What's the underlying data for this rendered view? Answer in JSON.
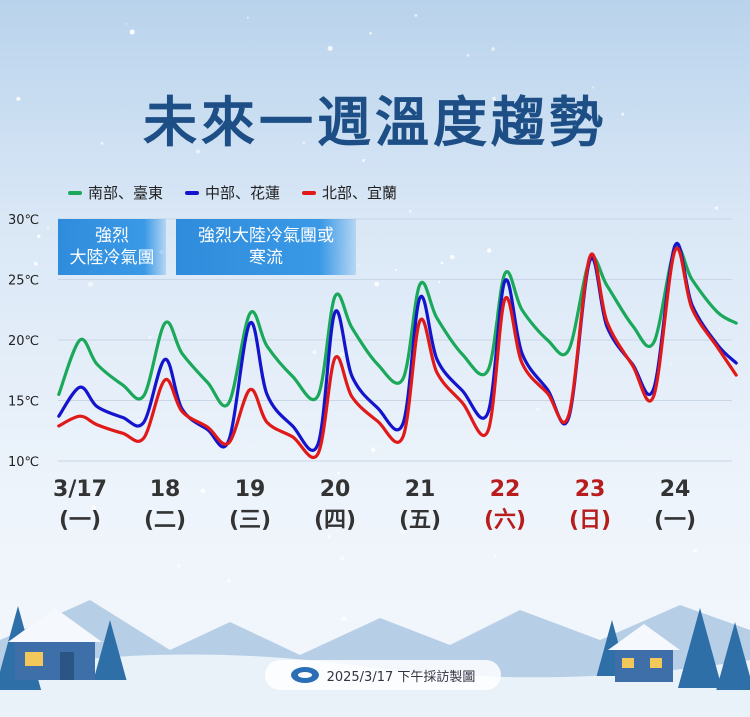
{
  "title": "未來一週溫度趨勢",
  "legend": [
    {
      "label": "南部、臺東",
      "color": "#1aa85a"
    },
    {
      "label": "中部、花蓮",
      "color": "#1414cc"
    },
    {
      "label": "北部、宜蘭",
      "color": "#e01919"
    }
  ],
  "bands": [
    {
      "line1": "強烈",
      "line2": "大陸冷氣團"
    },
    {
      "line1": "強烈大陸冷氣團或",
      "line2": "寒流"
    }
  ],
  "footer": "2025/3/17 下午採訪製圖",
  "chart_data": {
    "type": "line",
    "title": "未來一週溫度趨勢",
    "ylim": [
      10,
      30
    ],
    "yticks": [
      "30℃",
      "25℃",
      "20℃",
      "15℃",
      "10℃"
    ],
    "x_tick_labels": [
      {
        "date": "3/17",
        "weekday": "(一)",
        "color": "#333333"
      },
      {
        "date": "18",
        "weekday": "(二)",
        "color": "#333333"
      },
      {
        "date": "19",
        "weekday": "(三)",
        "color": "#333333"
      },
      {
        "date": "20",
        "weekday": "(四)",
        "color": "#333333"
      },
      {
        "date": "21",
        "weekday": "(五)",
        "color": "#333333"
      },
      {
        "date": "22",
        "weekday": "(六)",
        "color": "#b81c1c"
      },
      {
        "date": "23",
        "weekday": "(日)",
        "color": "#b81c1c"
      },
      {
        "date": "24",
        "weekday": "(一)",
        "color": "#333333"
      }
    ],
    "x_unit": "days from 3/17 00:00",
    "series": [
      {
        "name": "南部、臺東",
        "color": "#1aa85a",
        "points": [
          [
            -0.25,
            15.5
          ],
          [
            0,
            20.0
          ],
          [
            0.2,
            18.0
          ],
          [
            0.5,
            16.3
          ],
          [
            0.75,
            15.4
          ],
          [
            1,
            21.4
          ],
          [
            1.2,
            18.9
          ],
          [
            1.5,
            16.5
          ],
          [
            1.75,
            14.8
          ],
          [
            2,
            22.2
          ],
          [
            2.2,
            19.5
          ],
          [
            2.5,
            17.0
          ],
          [
            2.8,
            15.4
          ],
          [
            3,
            23.6
          ],
          [
            3.2,
            21.0
          ],
          [
            3.5,
            18.0
          ],
          [
            3.8,
            16.8
          ],
          [
            4,
            24.6
          ],
          [
            4.2,
            21.8
          ],
          [
            4.5,
            18.8
          ],
          [
            4.8,
            17.5
          ],
          [
            5,
            25.5
          ],
          [
            5.2,
            22.5
          ],
          [
            5.5,
            20.0
          ],
          [
            5.75,
            19.2
          ],
          [
            6,
            26.6
          ],
          [
            6.2,
            24.5
          ],
          [
            6.5,
            21.2
          ],
          [
            6.75,
            19.8
          ],
          [
            7,
            27.5
          ],
          [
            7.2,
            25.0
          ],
          [
            7.5,
            22.3
          ],
          [
            7.72,
            21.4
          ]
        ]
      },
      {
        "name": "中部、花蓮",
        "color": "#1414cc",
        "points": [
          [
            -0.25,
            13.7
          ],
          [
            0,
            16.1
          ],
          [
            0.2,
            14.5
          ],
          [
            0.5,
            13.6
          ],
          [
            0.75,
            13.2
          ],
          [
            1,
            18.4
          ],
          [
            1.2,
            14.3
          ],
          [
            1.5,
            12.6
          ],
          [
            1.75,
            11.7
          ],
          [
            2,
            21.4
          ],
          [
            2.2,
            15.5
          ],
          [
            2.5,
            12.9
          ],
          [
            2.8,
            11.4
          ],
          [
            3,
            22.3
          ],
          [
            3.2,
            17.0
          ],
          [
            3.5,
            14.4
          ],
          [
            3.8,
            13.1
          ],
          [
            4,
            23.5
          ],
          [
            4.2,
            18.4
          ],
          [
            4.5,
            15.8
          ],
          [
            4.8,
            14.0
          ],
          [
            5,
            24.9
          ],
          [
            5.2,
            18.9
          ],
          [
            5.5,
            15.9
          ],
          [
            5.75,
            13.6
          ],
          [
            6,
            26.6
          ],
          [
            6.2,
            21.1
          ],
          [
            6.5,
            18.0
          ],
          [
            6.75,
            16.0
          ],
          [
            7,
            27.8
          ],
          [
            7.2,
            22.9
          ],
          [
            7.5,
            19.6
          ],
          [
            7.72,
            18.1
          ]
        ]
      },
      {
        "name": "北部、宜蘭",
        "color": "#e01919",
        "points": [
          [
            -0.25,
            12.9
          ],
          [
            0,
            13.7
          ],
          [
            0.2,
            13.0
          ],
          [
            0.5,
            12.3
          ],
          [
            0.75,
            11.9
          ],
          [
            1,
            16.7
          ],
          [
            1.2,
            14.1
          ],
          [
            1.5,
            12.8
          ],
          [
            1.75,
            11.5
          ],
          [
            2,
            15.9
          ],
          [
            2.2,
            13.2
          ],
          [
            2.5,
            12.0
          ],
          [
            2.8,
            10.6
          ],
          [
            3,
            18.5
          ],
          [
            3.2,
            15.3
          ],
          [
            3.5,
            13.3
          ],
          [
            3.8,
            12.0
          ],
          [
            4,
            21.6
          ],
          [
            4.2,
            17.3
          ],
          [
            4.5,
            14.8
          ],
          [
            4.8,
            12.5
          ],
          [
            5,
            23.4
          ],
          [
            5.2,
            18.1
          ],
          [
            5.5,
            15.6
          ],
          [
            5.75,
            13.8
          ],
          [
            6,
            26.9
          ],
          [
            6.2,
            21.5
          ],
          [
            6.5,
            17.9
          ],
          [
            6.75,
            15.4
          ],
          [
            7,
            27.4
          ],
          [
            7.2,
            22.6
          ],
          [
            7.5,
            19.4
          ],
          [
            7.72,
            17.1
          ]
        ]
      }
    ]
  }
}
